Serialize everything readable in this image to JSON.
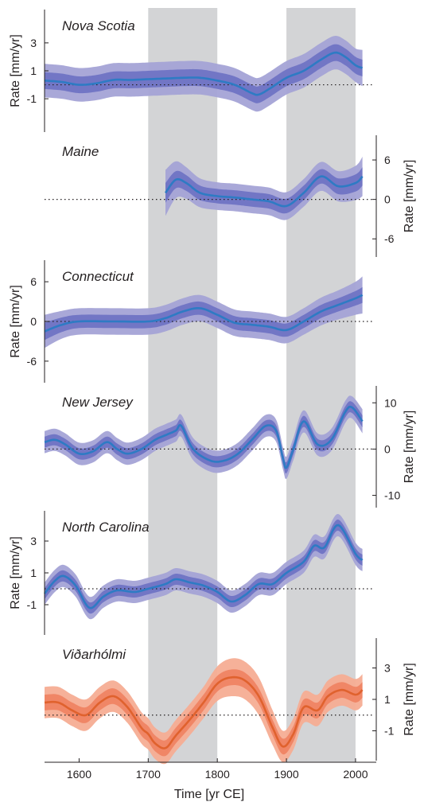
{
  "xlabel": "Time [yr CE]",
  "x_ticks": [
    1600,
    1700,
    1800,
    1900,
    2000
  ],
  "xlim": [
    1550,
    2030
  ],
  "shaded_intervals": [
    [
      1700,
      1800
    ],
    [
      1900,
      2000
    ]
  ],
  "colors": {
    "blue_line": "#2e7bc4",
    "blue_inner": "#6f73c4",
    "blue_outer": "#a4a3d6",
    "orange_line": "#e0622e",
    "orange_inner": "#ef8463",
    "orange_outer": "#f5ad93",
    "shade": "#d3d4d6",
    "axis": "#231f20"
  },
  "chart_data": [
    {
      "type": "line",
      "title": "Nova Scotia",
      "ylabel": "Rate [mm/yr]",
      "axis_side": "left",
      "ylim": [
        -3.5,
        5.5
      ],
      "y_ticks": [
        -1,
        1,
        3
      ],
      "color": "blue",
      "x": [
        1550,
        1575,
        1600,
        1625,
        1650,
        1675,
        1700,
        1725,
        1750,
        1775,
        1800,
        1825,
        1850,
        1860,
        1875,
        1900,
        1925,
        1950,
        1970,
        1985,
        2000,
        2010
      ],
      "y": [
        0.3,
        0.2,
        0.0,
        0.1,
        0.35,
        0.35,
        0.4,
        0.45,
        0.5,
        0.5,
        0.3,
        0.0,
        -0.6,
        -0.7,
        -0.3,
        0.5,
        1.0,
        1.8,
        2.3,
        2.0,
        1.4,
        1.2
      ],
      "ci1": [
        0.6,
        0.6,
        0.6,
        0.6,
        0.6,
        0.6,
        0.6,
        0.6,
        0.6,
        0.6,
        0.6,
        0.6,
        0.6,
        0.6,
        0.6,
        0.6,
        0.6,
        0.6,
        0.6,
        0.6,
        0.6,
        0.6
      ],
      "ci2": [
        1.2,
        1.2,
        1.2,
        1.2,
        1.2,
        1.2,
        1.2,
        1.2,
        1.2,
        1.2,
        1.2,
        1.2,
        1.2,
        1.2,
        1.2,
        1.2,
        1.2,
        1.2,
        1.2,
        1.2,
        1.2,
        1.3
      ]
    },
    {
      "type": "line",
      "title": "Maine",
      "ylabel": "Rate [mm/yr]",
      "axis_side": "right",
      "ylim": [
        -9,
        10
      ],
      "y_ticks": [
        -6,
        0,
        6
      ],
      "color": "blue",
      "x": [
        1725,
        1740,
        1755,
        1775,
        1800,
        1825,
        1850,
        1875,
        1900,
        1925,
        1950,
        1975,
        2000,
        2010
      ],
      "y": [
        1.0,
        3.0,
        2.5,
        1.0,
        0.5,
        0.3,
        0.0,
        -0.3,
        -1.0,
        1.0,
        3.5,
        2.0,
        2.5,
        3.5
      ],
      "ci1": [
        1.5,
        1.3,
        1.2,
        1.1,
        1.1,
        1.1,
        1.1,
        1.1,
        1.1,
        1.1,
        1.1,
        1.2,
        1.3,
        1.4
      ],
      "ci2": [
        3.5,
        2.8,
        2.4,
        2.2,
        2.1,
        2.1,
        2.1,
        2.1,
        2.1,
        2.1,
        2.2,
        2.3,
        2.6,
        3.0
      ]
    },
    {
      "type": "line",
      "title": "Connecticut",
      "ylabel": "Rate [mm/yr]",
      "axis_side": "left",
      "ylim": [
        -9.5,
        9.5
      ],
      "y_ticks": [
        -6,
        0,
        6
      ],
      "color": "blue",
      "x": [
        1550,
        1575,
        1600,
        1650,
        1700,
        1725,
        1750,
        1775,
        1800,
        1825,
        1850,
        1875,
        1900,
        1925,
        1950,
        1975,
        2000,
        2010
      ],
      "y": [
        -1.5,
        -0.5,
        0.0,
        0.0,
        0.0,
        0.5,
        1.5,
        2.0,
        1.0,
        -0.2,
        -0.5,
        -0.8,
        -1.3,
        0.0,
        1.5,
        2.5,
        3.5,
        4.0
      ],
      "ci1": [
        1.3,
        1.1,
        1.0,
        1.0,
        1.0,
        1.0,
        1.0,
        1.0,
        1.0,
        1.0,
        1.0,
        1.0,
        1.0,
        1.0,
        1.0,
        1.0,
        1.1,
        1.2
      ],
      "ci2": [
        2.5,
        2.1,
        2.0,
        2.0,
        2.0,
        2.0,
        2.0,
        2.0,
        2.0,
        2.0,
        2.0,
        2.0,
        2.0,
        2.0,
        2.1,
        2.2,
        2.5,
        2.8
      ]
    },
    {
      "type": "line",
      "title": "New Jersey",
      "ylabel": "Rate [mm/yr]",
      "axis_side": "right",
      "ylim": [
        -13,
        14
      ],
      "y_ticks": [
        -10,
        0,
        10
      ],
      "color": "blue",
      "x": [
        1550,
        1565,
        1580,
        1600,
        1620,
        1640,
        1655,
        1670,
        1690,
        1710,
        1725,
        1740,
        1748,
        1765,
        1790,
        1810,
        1830,
        1850,
        1870,
        1885,
        1895,
        1900,
        1910,
        1925,
        1945,
        1965,
        1985,
        1995,
        2010
      ],
      "y": [
        1.5,
        2.0,
        1.0,
        -1.0,
        -0.5,
        1.5,
        0.0,
        -1.0,
        0.0,
        2.0,
        3.0,
        4.0,
        5.0,
        0.0,
        -2.5,
        -2.5,
        -1.0,
        2.0,
        5.0,
        4.0,
        -2.0,
        -4.0,
        0.0,
        6.0,
        1.0,
        2.0,
        8.0,
        9.0,
        6.0
      ],
      "ci1": [
        1.2,
        1.2,
        1.2,
        1.2,
        1.2,
        1.2,
        1.2,
        1.2,
        1.2,
        1.2,
        1.2,
        1.2,
        1.2,
        1.2,
        1.2,
        1.2,
        1.2,
        1.2,
        1.2,
        1.2,
        1.2,
        1.2,
        1.2,
        1.2,
        1.2,
        1.2,
        1.2,
        1.2,
        1.3
      ],
      "ci2": [
        2.4,
        2.4,
        2.4,
        2.4,
        2.4,
        2.4,
        2.4,
        2.4,
        2.4,
        2.4,
        2.4,
        2.4,
        2.4,
        2.4,
        2.4,
        2.4,
        2.4,
        2.4,
        2.4,
        2.4,
        2.4,
        2.4,
        2.4,
        2.4,
        2.4,
        2.4,
        2.4,
        2.4,
        2.6
      ]
    },
    {
      "type": "line",
      "title": "North Carolina",
      "ylabel": "Rate [mm/yr]",
      "axis_side": "left",
      "ylim": [
        -3,
        5
      ],
      "y_ticks": [
        -1,
        1,
        3
      ],
      "color": "blue",
      "x": [
        1550,
        1565,
        1578,
        1595,
        1615,
        1635,
        1655,
        1680,
        1700,
        1725,
        1740,
        1760,
        1780,
        1800,
        1820,
        1840,
        1860,
        1880,
        1900,
        1925,
        1940,
        1955,
        1975,
        2000,
        2010
      ],
      "y": [
        -0.3,
        0.5,
        0.8,
        0.2,
        -1.2,
        -0.5,
        -0.1,
        -0.2,
        0.0,
        0.3,
        0.6,
        0.4,
        0.2,
        -0.2,
        -0.8,
        -0.4,
        0.3,
        0.3,
        1.0,
        1.7,
        2.7,
        2.6,
        4.0,
        2.2,
        1.8
      ],
      "ci1": [
        0.35,
        0.35,
        0.35,
        0.35,
        0.35,
        0.35,
        0.35,
        0.35,
        0.35,
        0.35,
        0.35,
        0.35,
        0.35,
        0.35,
        0.35,
        0.35,
        0.35,
        0.35,
        0.35,
        0.35,
        0.35,
        0.35,
        0.35,
        0.35,
        0.35
      ],
      "ci2": [
        0.7,
        0.7,
        0.7,
        0.7,
        0.7,
        0.7,
        0.7,
        0.7,
        0.7,
        0.7,
        0.7,
        0.7,
        0.7,
        0.7,
        0.7,
        0.7,
        0.7,
        0.7,
        0.7,
        0.7,
        0.7,
        0.7,
        0.7,
        0.7,
        0.7
      ]
    },
    {
      "type": "line",
      "title": "Viðarhólmi",
      "ylabel": "Rate [mm/yr]",
      "axis_side": "right",
      "ylim": [
        -3,
        5
      ],
      "y_ticks": [
        -1,
        1,
        3
      ],
      "color": "orange",
      "x": [
        1550,
        1570,
        1590,
        1610,
        1630,
        1650,
        1670,
        1690,
        1700,
        1710,
        1725,
        1740,
        1760,
        1780,
        1800,
        1820,
        1840,
        1860,
        1880,
        1895,
        1910,
        1925,
        1945,
        1960,
        1980,
        2000,
        2010
      ],
      "y": [
        0.8,
        0.8,
        0.3,
        0.0,
        0.8,
        1.2,
        0.5,
        -0.8,
        -1.2,
        -1.8,
        -2.1,
        -1.3,
        -0.3,
        0.8,
        2.0,
        2.4,
        2.2,
        1.2,
        -0.8,
        -2.0,
        -1.2,
        0.5,
        0.3,
        1.2,
        1.6,
        1.3,
        1.6
      ],
      "ci1": [
        0.5,
        0.5,
        0.5,
        0.5,
        0.5,
        0.5,
        0.5,
        0.5,
        0.5,
        0.5,
        0.5,
        0.5,
        0.5,
        0.5,
        0.5,
        0.5,
        0.5,
        0.5,
        0.5,
        0.5,
        0.5,
        0.5,
        0.5,
        0.5,
        0.5,
        0.5,
        0.5
      ],
      "ci2": [
        1.0,
        1.0,
        1.0,
        1.0,
        1.0,
        1.0,
        1.0,
        1.0,
        1.0,
        1.0,
        1.0,
        1.0,
        1.0,
        1.0,
        1.1,
        1.2,
        1.2,
        1.2,
        1.1,
        1.0,
        1.0,
        1.0,
        1.0,
        1.0,
        1.0,
        1.0,
        1.0
      ]
    }
  ]
}
